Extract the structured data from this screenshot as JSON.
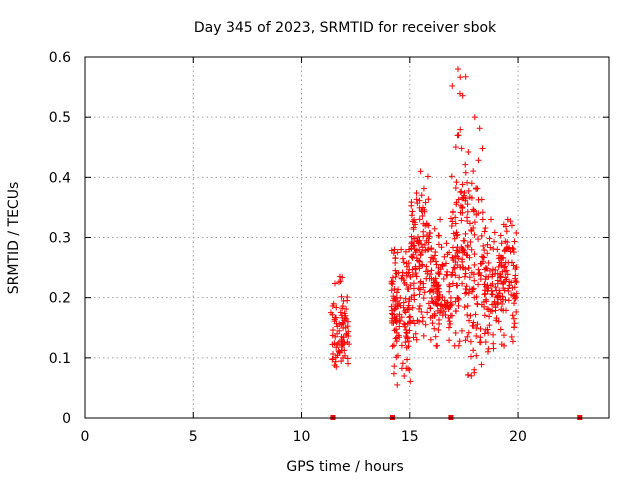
{
  "chart_data": {
    "type": "scatter",
    "title": "Day 345 of 2023, SRMTID for receiver sbok",
    "xlabel": "GPS time / hours",
    "ylabel": "SRMTID / TECUs",
    "xlim": [
      0,
      24.2
    ],
    "ylim": [
      0,
      0.6
    ],
    "xticks": [
      0,
      5,
      10,
      15,
      20
    ],
    "xtick_labels": [
      "0",
      "5",
      "10",
      "15",
      "20"
    ],
    "yticks": [
      0,
      0.1,
      0.2,
      0.3,
      0.4,
      0.5,
      0.6
    ],
    "ytick_labels": [
      "0",
      "0.1",
      "0.2",
      "0.3",
      "0.4",
      "0.5",
      "0.6"
    ],
    "grid": true,
    "marker": "+",
    "color": "#ff0000",
    "zero_markers_x": [
      11.45,
      14.2,
      16.9,
      22.85
    ],
    "series": [
      {
        "name": "SRMTID",
        "clusters": [
          {
            "x_start": 11.35,
            "x_end": 12.2,
            "count": 80,
            "y_min": 0.085,
            "y_max": 0.235,
            "y_center": 0.145
          },
          {
            "x_start": 14.15,
            "x_end": 15.05,
            "count": 130,
            "y_min": 0.055,
            "y_max": 0.28,
            "y_center": 0.175
          },
          {
            "x_start": 15.05,
            "x_end": 15.95,
            "count": 130,
            "y_min": 0.13,
            "y_max": 0.41,
            "y_center": 0.27
          },
          {
            "x_start": 15.95,
            "x_end": 16.85,
            "count": 110,
            "y_min": 0.12,
            "y_max": 0.33,
            "y_center": 0.21
          },
          {
            "x_start": 16.85,
            "x_end": 17.6,
            "count": 110,
            "y_min": 0.12,
            "y_max": 0.58,
            "y_center": 0.28
          },
          {
            "x_start": 17.6,
            "x_end": 18.4,
            "count": 100,
            "y_min": 0.07,
            "y_max": 0.5,
            "y_center": 0.25
          },
          {
            "x_start": 18.4,
            "x_end": 19.1,
            "count": 80,
            "y_min": 0.11,
            "y_max": 0.33,
            "y_center": 0.22
          },
          {
            "x_start": 19.1,
            "x_end": 19.95,
            "count": 100,
            "y_min": 0.12,
            "y_max": 0.33,
            "y_center": 0.23
          }
        ]
      }
    ]
  }
}
